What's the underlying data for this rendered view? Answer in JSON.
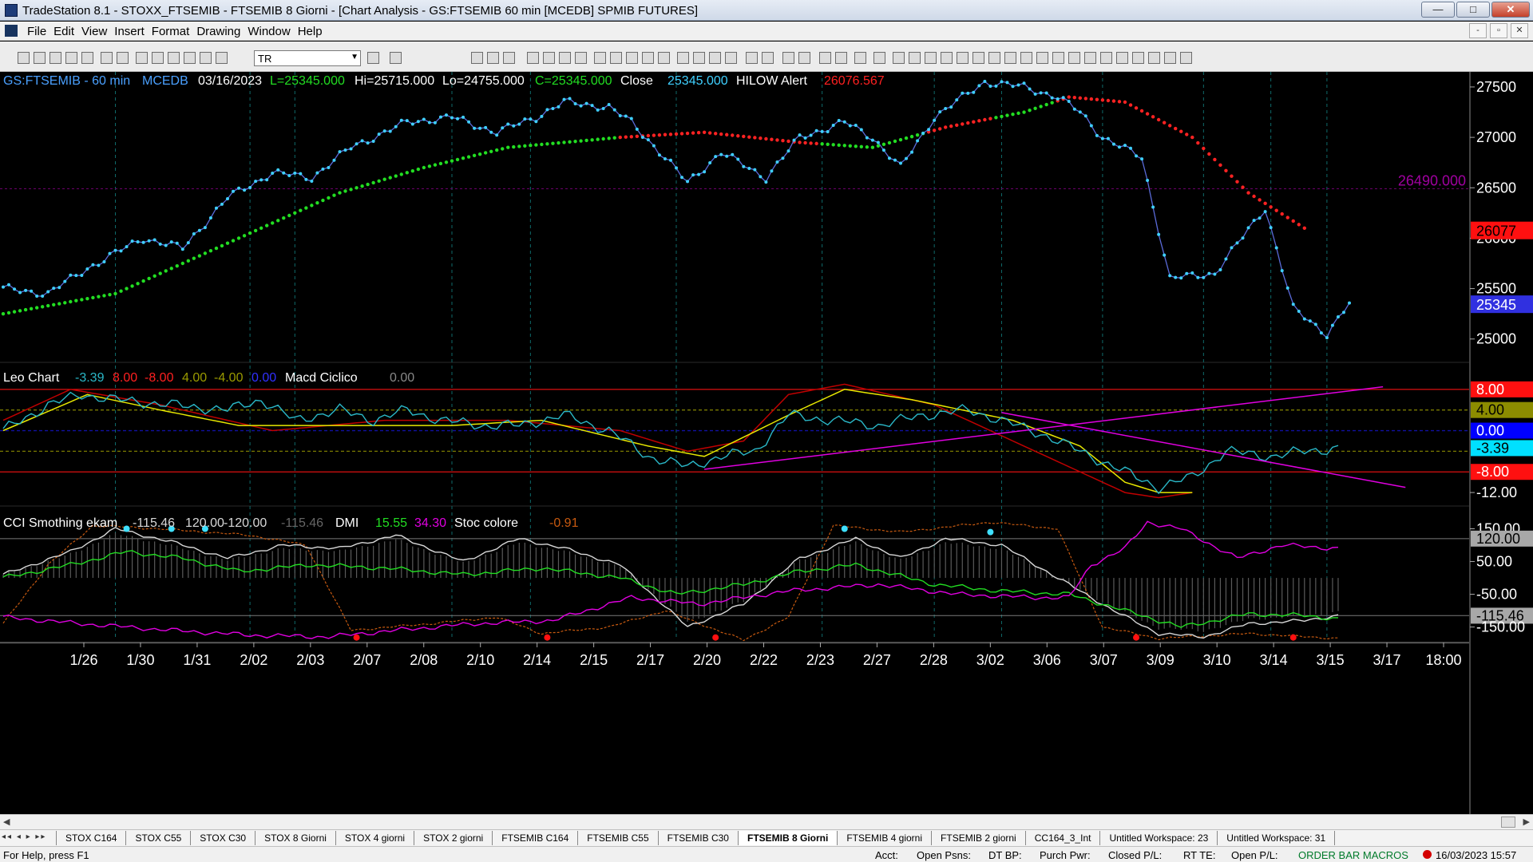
{
  "window": {
    "title": "TradeStation 8.1 - STOXX_FTSEMIB - FTSEMIB  8 Giorni - [Chart Analysis - GS:FTSEMIB  60 min  [MCEDB] SPMIB FUTURES]",
    "min": "—",
    "max": "□",
    "close": "✕"
  },
  "menu": {
    "items": [
      "File",
      "Edit",
      "View",
      "Insert",
      "Format",
      "Drawing",
      "Window",
      "Help"
    ],
    "mdi_min": "-",
    "mdi_restore": "▫",
    "mdi_close": "✕"
  },
  "toolbar": {
    "symbol": "TR"
  },
  "colors": {
    "price": "#3fd0ff",
    "ma_green": "#22dd22",
    "ma_red": "#ff2222",
    "magenta": "#e000e0",
    "yellow": "#e8e800",
    "darkred": "#b00000",
    "grid": "#0f6a6a"
  },
  "chart_data": [
    {
      "type": "line",
      "header": {
        "symbol": "GS:FTSEMIB - 60 min",
        "source": "MCEDB",
        "date": "03/16/2023",
        "last": "L=25345.000",
        "hi": "Hi=25715.000",
        "lo": "Lo=24755.000",
        "close_eq": "C=25345.000",
        "close_label": "Close",
        "close_val": "25345.000",
        "alert_label": "HILOW Alert",
        "alert_val": "26076.567"
      },
      "ylim": [
        24800,
        27650
      ],
      "yticks": [
        "27500",
        "27000",
        "26500",
        "26000",
        "25500",
        "25000"
      ],
      "hline_value": 26490,
      "hline_label": "26490.000",
      "last_tag": "25345",
      "alert_tag": "26077",
      "x_labels": [
        "1/26",
        "1/30",
        "1/31",
        "2/02",
        "2/03",
        "2/07",
        "2/08",
        "2/10",
        "2/14",
        "2/15",
        "2/17",
        "2/20",
        "2/22",
        "2/23",
        "2/27",
        "2/28",
        "3/02",
        "3/06",
        "3/07",
        "3/09",
        "3/10",
        "3/14",
        "3/15",
        "3/17",
        "18:00"
      ],
      "price_keys": [
        [
          0,
          25500
        ],
        [
          8,
          25450
        ],
        [
          15,
          25700
        ],
        [
          25,
          26000
        ],
        [
          32,
          25900
        ],
        [
          40,
          26400
        ],
        [
          48,
          26650
        ],
        [
          55,
          26600
        ],
        [
          62,
          26900
        ],
        [
          72,
          27150
        ],
        [
          80,
          27200
        ],
        [
          88,
          27050
        ],
        [
          95,
          27200
        ],
        [
          100,
          27350
        ],
        [
          108,
          27300
        ],
        [
          112,
          27150
        ],
        [
          118,
          26800
        ],
        [
          122,
          26550
        ],
        [
          128,
          26850
        ],
        [
          136,
          26600
        ],
        [
          142,
          27000
        ],
        [
          150,
          27150
        ],
        [
          155,
          27000
        ],
        [
          160,
          26700
        ],
        [
          166,
          27200
        ],
        [
          175,
          27550
        ],
        [
          182,
          27500
        ],
        [
          188,
          27400
        ],
        [
          192,
          27250
        ],
        [
          196,
          27000
        ],
        [
          203,
          26800
        ],
        [
          208,
          25600
        ],
        [
          216,
          25650
        ],
        [
          225,
          26300
        ],
        [
          230,
          25300
        ],
        [
          236,
          25050
        ],
        [
          240,
          25350
        ]
      ],
      "ma_keys": [
        [
          0,
          25250
        ],
        [
          20,
          25450
        ],
        [
          40,
          25950
        ],
        [
          60,
          26450
        ],
        [
          75,
          26700
        ],
        [
          90,
          26900
        ],
        [
          110,
          27000
        ],
        [
          125,
          27050
        ],
        [
          142,
          26950
        ],
        [
          155,
          26900
        ],
        [
          168,
          27100
        ],
        [
          182,
          27250
        ],
        [
          190,
          27400
        ],
        [
          200,
          27350
        ],
        [
          212,
          27000
        ],
        [
          222,
          26450
        ],
        [
          232,
          26100
        ]
      ],
      "ma_red_ranges": [
        [
          110,
          145
        ],
        [
          165,
          176
        ],
        [
          188,
          232
        ]
      ]
    },
    {
      "type": "line",
      "header": {
        "name": "Leo Chart",
        "v1": "-3.39",
        "v2": "8.00",
        "v3": "-8.00",
        "v4": "4.00",
        "v5": "-4.00",
        "v6": "0.00",
        "name2": "Macd Ciclico",
        "v7": "0.00"
      },
      "ylim": [
        -14,
        12
      ],
      "tags": [
        {
          "label": "8.00",
          "value": 8,
          "bg": "#ff1010",
          "fg": "#ffffff"
        },
        {
          "label": "4.00",
          "value": 4,
          "bg": "#8c8c00",
          "fg": "#000000"
        },
        {
          "label": "0.00",
          "value": 0,
          "bg": "#0000ff",
          "fg": "#ffffff"
        },
        {
          "label": "-3.39",
          "value": -3.39,
          "bg": "#00e0ff",
          "fg": "#000000"
        },
        {
          "label": "-8.00",
          "value": -8,
          "bg": "#ff1010",
          "fg": "#ffffff"
        },
        {
          "label": "-12.00",
          "value": -12,
          "bg": "",
          "fg": "#ffffff"
        }
      ],
      "cyan_keys": [
        [
          0,
          0
        ],
        [
          8,
          5
        ],
        [
          14,
          7
        ],
        [
          20,
          6
        ],
        [
          30,
          5
        ],
        [
          40,
          4
        ],
        [
          46,
          6
        ],
        [
          52,
          2
        ],
        [
          60,
          4
        ],
        [
          66,
          2
        ],
        [
          72,
          4
        ],
        [
          78,
          2
        ],
        [
          86,
          1
        ],
        [
          92,
          1
        ],
        [
          100,
          3
        ],
        [
          108,
          0
        ],
        [
          115,
          -5
        ],
        [
          122,
          -7
        ],
        [
          128,
          -5
        ],
        [
          134,
          -4
        ],
        [
          140,
          3
        ],
        [
          148,
          2
        ],
        [
          156,
          1
        ],
        [
          164,
          3
        ],
        [
          172,
          4
        ],
        [
          178,
          2
        ],
        [
          186,
          -1
        ],
        [
          192,
          -4
        ],
        [
          200,
          -8
        ],
        [
          206,
          -11
        ],
        [
          212,
          -9
        ],
        [
          218,
          -4
        ],
        [
          226,
          -5
        ],
        [
          232,
          -4
        ],
        [
          238,
          -3.4
        ]
      ],
      "yellow_keys": [
        [
          0,
          0
        ],
        [
          15,
          7
        ],
        [
          28,
          4
        ],
        [
          42,
          1
        ],
        [
          60,
          1
        ],
        [
          80,
          1
        ],
        [
          96,
          2
        ],
        [
          115,
          -3
        ],
        [
          125,
          -5
        ],
        [
          140,
          3
        ],
        [
          150,
          8
        ],
        [
          162,
          6
        ],
        [
          180,
          2
        ],
        [
          192,
          -3
        ],
        [
          200,
          -10
        ],
        [
          206,
          -12
        ],
        [
          212,
          -12
        ]
      ],
      "red_keys": [
        [
          0,
          2
        ],
        [
          12,
          8
        ],
        [
          28,
          5
        ],
        [
          48,
          0
        ],
        [
          68,
          2
        ],
        [
          90,
          2
        ],
        [
          110,
          0
        ],
        [
          122,
          -4
        ],
        [
          132,
          -2
        ],
        [
          140,
          7
        ],
        [
          150,
          9
        ],
        [
          166,
          5
        ],
        [
          180,
          -2
        ],
        [
          192,
          -8
        ],
        [
          200,
          -12
        ],
        [
          206,
          -13
        ],
        [
          212,
          -12
        ]
      ],
      "trend_lines": [
        [
          [
            125,
            -7.5
          ],
          [
            246,
            8.5
          ]
        ],
        [
          [
            178,
            3.5
          ],
          [
            250,
            -11
          ]
        ]
      ]
    },
    {
      "type": "line",
      "header": {
        "name": "CCI Smothing ekam",
        "v1": "-115.46",
        "v2": "120.00",
        "v3": "-120.00",
        "v4": "-115.46",
        "name2": "DMI",
        "v5": "15.55",
        "v6": "34.30",
        "name3": "Stoc colore",
        "v7": "-0.91"
      },
      "ylim": [
        -190,
        200
      ],
      "yticks": [
        {
          "label": "150.00",
          "value": 150
        },
        {
          "label": "120.00",
          "value": 120,
          "tag": true
        },
        {
          "label": "50.00",
          "value": 50
        },
        {
          "label": "-50.00",
          "value": -50
        },
        {
          "label": "-115.46",
          "value": -115.46,
          "tag": true
        },
        {
          "label": "-150.00",
          "value": -150
        }
      ],
      "white_keys": [
        [
          0,
          10
        ],
        [
          12,
          80
        ],
        [
          20,
          150
        ],
        [
          30,
          110
        ],
        [
          40,
          60
        ],
        [
          50,
          100
        ],
        [
          60,
          90
        ],
        [
          70,
          130
        ],
        [
          82,
          50
        ],
        [
          92,
          120
        ],
        [
          100,
          90
        ],
        [
          110,
          40
        ],
        [
          122,
          -150
        ],
        [
          132,
          -80
        ],
        [
          142,
          60
        ],
        [
          152,
          120
        ],
        [
          160,
          60
        ],
        [
          168,
          120
        ],
        [
          178,
          100
        ],
        [
          190,
          -20
        ],
        [
          198,
          -100
        ],
        [
          206,
          -170
        ],
        [
          214,
          -180
        ],
        [
          222,
          -140
        ],
        [
          232,
          -130
        ],
        [
          238,
          -115
        ]
      ],
      "green_keys": [
        [
          0,
          0
        ],
        [
          12,
          40
        ],
        [
          22,
          80
        ],
        [
          32,
          60
        ],
        [
          42,
          20
        ],
        [
          55,
          40
        ],
        [
          68,
          30
        ],
        [
          82,
          10
        ],
        [
          96,
          30
        ],
        [
          110,
          0
        ],
        [
          120,
          -50
        ],
        [
          132,
          -20
        ],
        [
          142,
          20
        ],
        [
          152,
          40
        ],
        [
          166,
          -20
        ],
        [
          178,
          -40
        ],
        [
          190,
          -50
        ],
        [
          200,
          -100
        ],
        [
          210,
          -150
        ],
        [
          222,
          -110
        ],
        [
          232,
          -115
        ],
        [
          238,
          -125
        ]
      ],
      "magenta_keys": [
        [
          0,
          -120
        ],
        [
          14,
          -140
        ],
        [
          30,
          -160
        ],
        [
          44,
          -175
        ],
        [
          58,
          -180
        ],
        [
          70,
          -160
        ],
        [
          84,
          -140
        ],
        [
          98,
          -130
        ],
        [
          112,
          -60
        ],
        [
          124,
          -80
        ],
        [
          140,
          -40
        ],
        [
          156,
          -20
        ],
        [
          170,
          -50
        ],
        [
          184,
          -60
        ],
        [
          190,
          -60
        ],
        [
          194,
          40
        ],
        [
          200,
          90
        ],
        [
          204,
          170
        ],
        [
          210,
          150
        ],
        [
          220,
          60
        ],
        [
          228,
          100
        ],
        [
          238,
          90
        ]
      ],
      "orange_keys": [
        [
          0,
          -140
        ],
        [
          8,
          40
        ],
        [
          16,
          160
        ],
        [
          28,
          150
        ],
        [
          44,
          130
        ],
        [
          54,
          100
        ],
        [
          62,
          -160
        ],
        [
          76,
          -140
        ],
        [
          88,
          -120
        ],
        [
          96,
          -170
        ],
        [
          108,
          -150
        ],
        [
          118,
          -100
        ],
        [
          132,
          -190
        ],
        [
          140,
          -120
        ],
        [
          148,
          160
        ],
        [
          160,
          140
        ],
        [
          176,
          170
        ],
        [
          188,
          150
        ],
        [
          196,
          -150
        ],
        [
          206,
          -185
        ],
        [
          222,
          -170
        ],
        [
          238,
          -185
        ]
      ],
      "red_dots": [
        63,
        97,
        127,
        202,
        230
      ],
      "cyan_dots": [
        [
          22,
          150
        ],
        [
          30,
          150
        ],
        [
          36,
          150
        ],
        [
          150,
          150
        ],
        [
          176,
          140
        ]
      ]
    }
  ],
  "tabs": {
    "nav": "◂◂ ◂ ▸ ▸▸",
    "items": [
      "STOX C164",
      "STOX C55",
      "STOX  C30",
      "STOX  8 Giorni",
      "STOX 4 giorni",
      "STOX  2 giorni",
      "FTSEMIB C164",
      "FTSEMIB C55",
      "FTSEMIB C30",
      "FTSEMIB  8 Giorni",
      "FTSEMIB  4 giorni",
      "FTSEMIB  2 giorni",
      "CC164_3_Int",
      "Untitled Workspace:  23",
      "Untitled Workspace:  31"
    ],
    "active_index": 9
  },
  "status": {
    "help": "For Help, press F1",
    "acct": "Acct:",
    "open_psns": "Open Psns:",
    "dt_bp": "DT BP:",
    "purch_pwr": "Purch Pwr:",
    "closed_pl": "Closed P/L:",
    "rt_te": "RT TE:",
    "open_pl": "Open P/L:",
    "macros": "ORDER BAR  MACROS",
    "datetime": "16/03/2023 15:57"
  }
}
